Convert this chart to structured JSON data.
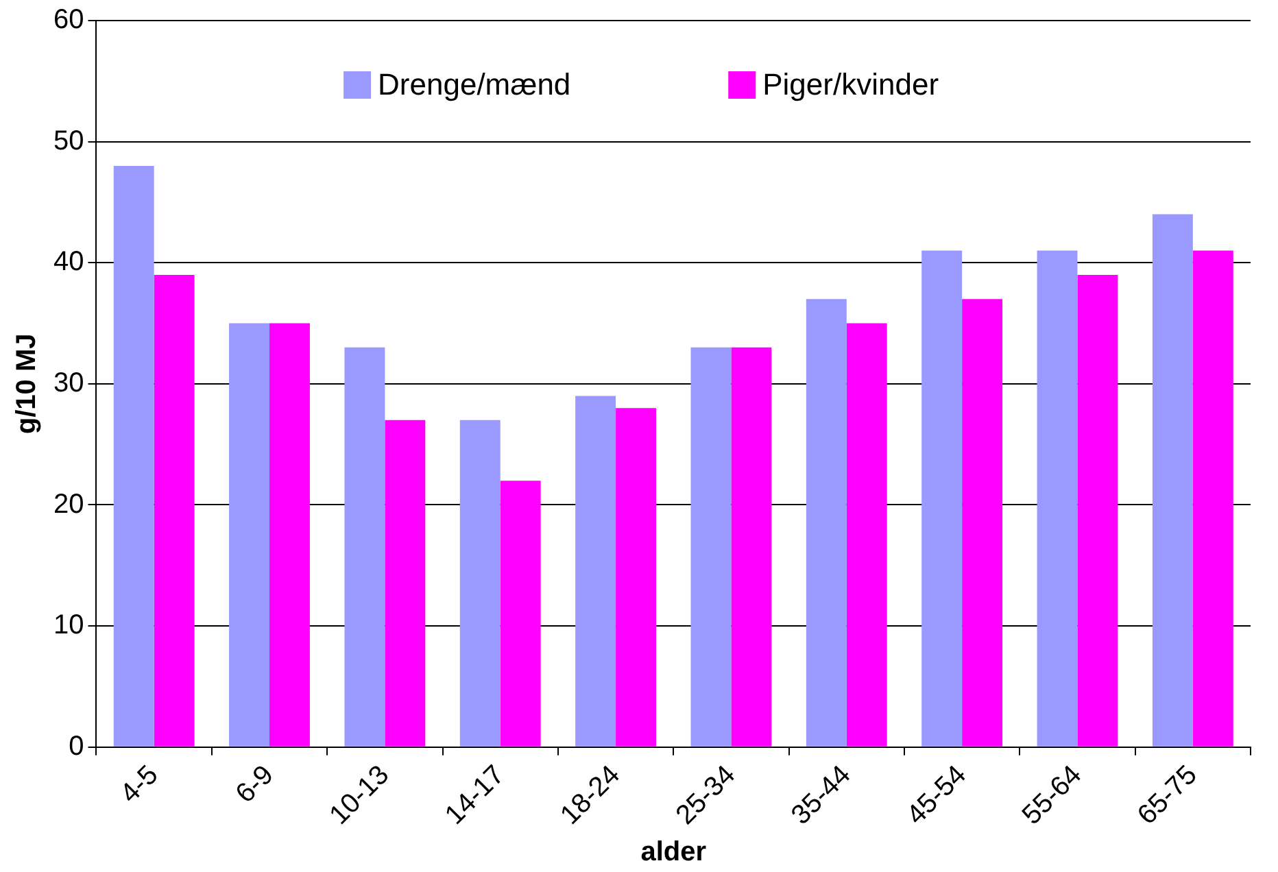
{
  "chart_data": {
    "type": "bar",
    "xlabel": "alder",
    "ylabel": "g/10 MJ",
    "categories": [
      "4-5",
      "6-9",
      "10-13",
      "14-17",
      "18-24",
      "25-34",
      "35-44",
      "45-54",
      "55-64",
      "65-75"
    ],
    "series": [
      {
        "name": "Drenge/mænd",
        "color": "#9999ff",
        "values": [
          48,
          35,
          33,
          27,
          29,
          33,
          37,
          41,
          41,
          44
        ]
      },
      {
        "name": "Piger/kvinder",
        "color": "#ff00ff",
        "values": [
          39,
          35,
          27,
          22,
          28,
          33,
          35,
          37,
          39,
          41
        ]
      }
    ],
    "ylim": [
      0,
      60
    ],
    "yticks": [
      0,
      10,
      20,
      30,
      40,
      50,
      60
    ],
    "grid": "y",
    "legend": "top"
  }
}
